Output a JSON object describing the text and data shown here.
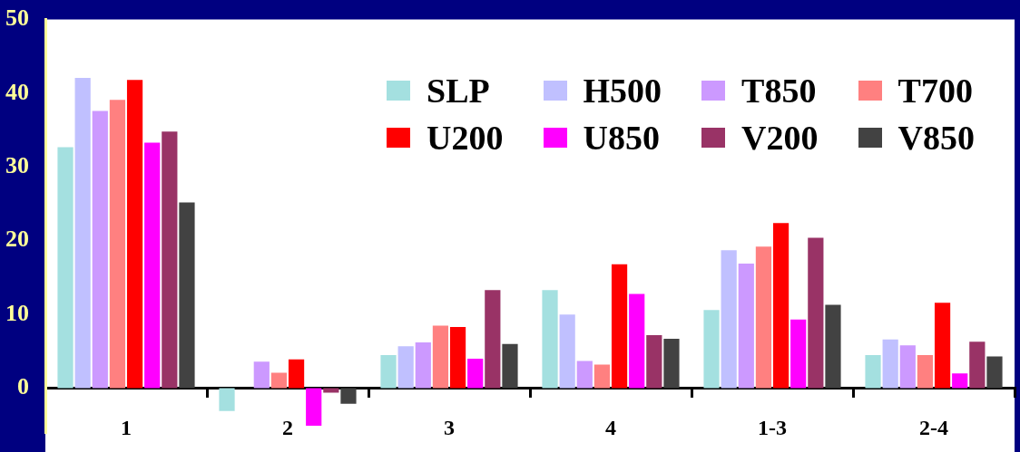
{
  "chart_data": {
    "type": "bar",
    "categories": [
      "1",
      "2",
      "3",
      "4",
      "1-3",
      "2-4"
    ],
    "series": [
      {
        "name": "SLP",
        "color": "#a4e0e0",
        "values": [
          32.7,
          -3.1,
          4.5,
          13.3,
          10.6,
          4.5
        ]
      },
      {
        "name": "H500",
        "color": "#c0c0ff",
        "values": [
          42.1,
          0,
          5.7,
          10.0,
          18.7,
          6.6
        ]
      },
      {
        "name": "T850",
        "color": "#cc99ff",
        "values": [
          37.6,
          3.6,
          6.2,
          3.7,
          16.9,
          5.8
        ]
      },
      {
        "name": "T700",
        "color": "#ff8080",
        "values": [
          39.1,
          2.1,
          8.5,
          3.2,
          19.2,
          4.5
        ]
      },
      {
        "name": "U200",
        "color": "#ff0000",
        "values": [
          41.8,
          3.9,
          8.3,
          16.8,
          22.4,
          11.6
        ]
      },
      {
        "name": "U850",
        "color": "#ff00ff",
        "values": [
          33.3,
          -5.1,
          4.0,
          12.8,
          9.3,
          2.0
        ]
      },
      {
        "name": "V200",
        "color": "#993366",
        "values": [
          34.8,
          -0.6,
          13.3,
          7.2,
          20.4,
          6.3
        ]
      },
      {
        "name": "V850",
        "color": "#424242",
        "values": [
          25.2,
          -2.1,
          6.0,
          6.7,
          11.3,
          4.3
        ]
      }
    ],
    "ylim": [
      -6,
      50
    ],
    "yticks": [
      0,
      10,
      20,
      30,
      40,
      50
    ],
    "grid": false,
    "legend": "top right"
  }
}
